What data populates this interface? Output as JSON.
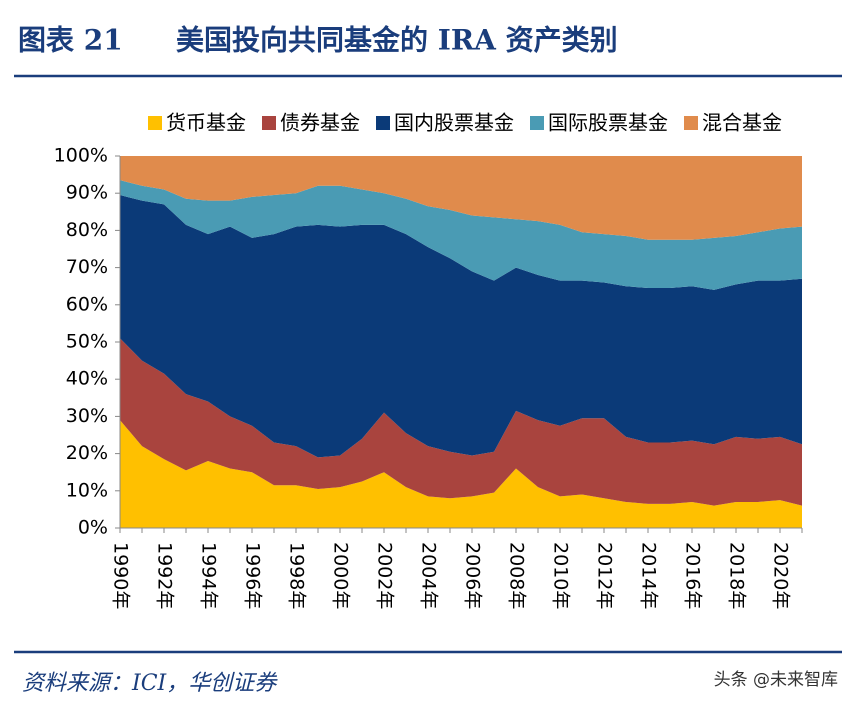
{
  "chart_data": {
    "type": "stacked-area",
    "label": "图表 21",
    "title": "美国投向共同基金的 IRA 资产类别",
    "source": "资料来源：ICI，华创证券",
    "watermark": "头条 @未来智库",
    "categories": [
      "1990年",
      null,
      "1992年",
      null,
      "1994年",
      null,
      "1996年",
      null,
      "1998年",
      null,
      "2000年",
      null,
      "2002年",
      null,
      "2004年",
      null,
      "2006年",
      null,
      "2008年",
      null,
      "2010年",
      null,
      "2012年",
      null,
      "2014年",
      null,
      "2016年",
      null,
      "2018年",
      null,
      "2020年",
      null
    ],
    "series": [
      {
        "name": "货币基金",
        "color": "#ffc000",
        "values": [
          29,
          22,
          18.5,
          15.5,
          18,
          16,
          15,
          11.5,
          11.5,
          10.5,
          11,
          12.5,
          15,
          11,
          8.5,
          8,
          8.5,
          9.5,
          16,
          11,
          8.5,
          9,
          8,
          7,
          6.5,
          6.5,
          7,
          6,
          7,
          7,
          7.5,
          6
        ]
      },
      {
        "name": "债券基金",
        "color": "#a9443e",
        "values": [
          22,
          23,
          23,
          20.5,
          16,
          14,
          12.5,
          11.5,
          10.5,
          8.5,
          8.5,
          11.5,
          16,
          14.5,
          13.5,
          12.5,
          11,
          11,
          15.5,
          18,
          19,
          20.5,
          21.5,
          17.5,
          16.5,
          16.5,
          16.5,
          16.5,
          17.5,
          17,
          17,
          16.5
        ]
      },
      {
        "name": "国内股票基金",
        "color": "#0b3a78",
        "values": [
          38.5,
          43,
          45.5,
          45.5,
          45,
          51,
          50.5,
          56,
          59,
          62.5,
          61.5,
          57.5,
          50.5,
          53.5,
          53.5,
          52,
          49.5,
          46,
          38.5,
          39,
          39,
          37,
          36.5,
          40.5,
          41.5,
          41.5,
          41.5,
          41.5,
          41,
          42.5,
          42,
          44.5
        ]
      },
      {
        "name": "国际股票基金",
        "color": "#4a9bb4",
        "values": [
          4,
          4,
          4,
          7,
          9,
          7,
          11,
          10.5,
          9,
          10.5,
          11,
          9.5,
          8.5,
          9.5,
          11,
          13,
          15,
          17,
          13,
          14.5,
          15,
          13,
          13,
          13.5,
          13,
          13,
          12.5,
          14,
          13,
          13,
          14,
          14
        ]
      },
      {
        "name": "混合基金",
        "color": "#e08b4c",
        "values": [
          6.5,
          8,
          9,
          11.5,
          12,
          12,
          11,
          10.5,
          10,
          8,
          8,
          9,
          10,
          11.5,
          13.5,
          14.5,
          16,
          16.5,
          17,
          17.5,
          18.5,
          20.5,
          21,
          21.5,
          22.5,
          22.5,
          22.5,
          22,
          21.5,
          20.5,
          19.5,
          19
        ]
      }
    ],
    "ylim": [
      0,
      100
    ],
    "yticks": [
      {
        "value": 0,
        "label": "0%"
      },
      {
        "value": 10,
        "label": "10%"
      },
      {
        "value": 20,
        "label": "20%"
      },
      {
        "value": 30,
        "label": "30%"
      },
      {
        "value": 40,
        "label": "40%"
      },
      {
        "value": 50,
        "label": "50%"
      },
      {
        "value": 60,
        "label": "60%"
      },
      {
        "value": 70,
        "label": "70%"
      },
      {
        "value": 80,
        "label": "80%"
      },
      {
        "value": 90,
        "label": "90%"
      },
      {
        "value": 100,
        "label": "100%"
      }
    ],
    "legend": "top",
    "grid": false
  }
}
